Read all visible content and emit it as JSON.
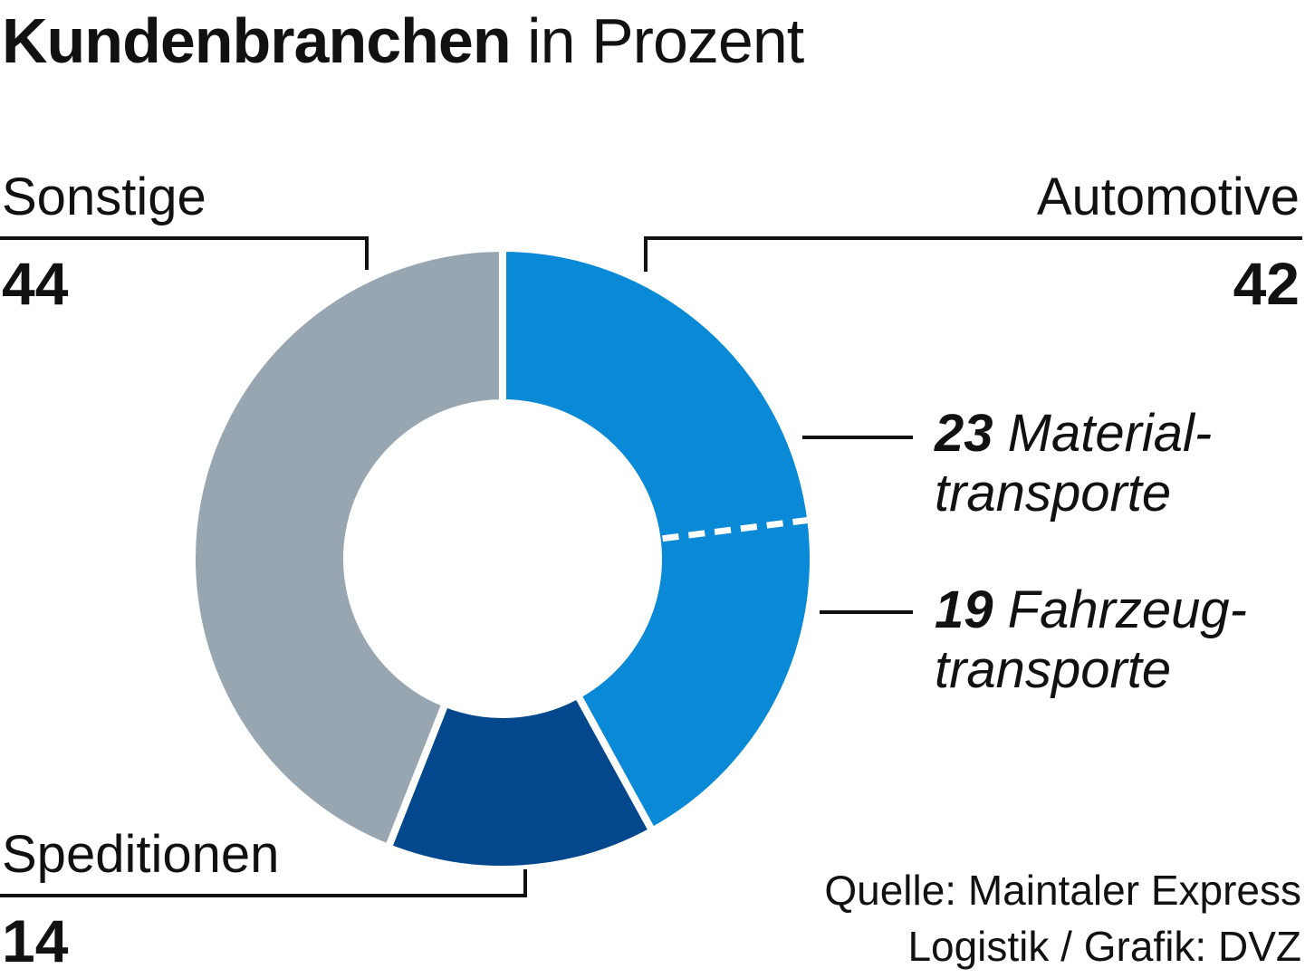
{
  "header": {
    "title_bold": "Kundenbranchen",
    "title_rest": "in Prozent"
  },
  "source": {
    "line1": "Quelle: Maintaler Express",
    "line2": "Logistik / Grafik: DVZ"
  },
  "chart_data": {
    "type": "pie",
    "style": "donut",
    "title": "Kundenbranchen in Prozent",
    "slices": [
      {
        "label": "Automotive",
        "value": 42,
        "color": "#0a8ad6",
        "sub": [
          {
            "value": 23,
            "line1": "Material-",
            "line2": "transporte"
          },
          {
            "value": 19,
            "line1": "Fahrzeug-",
            "line2": "transporte"
          }
        ]
      },
      {
        "label": "Speditionen",
        "value": 14,
        "color": "#03488c"
      },
      {
        "label": "Sonstige",
        "value": 44,
        "color": "#97a6b1"
      }
    ]
  }
}
